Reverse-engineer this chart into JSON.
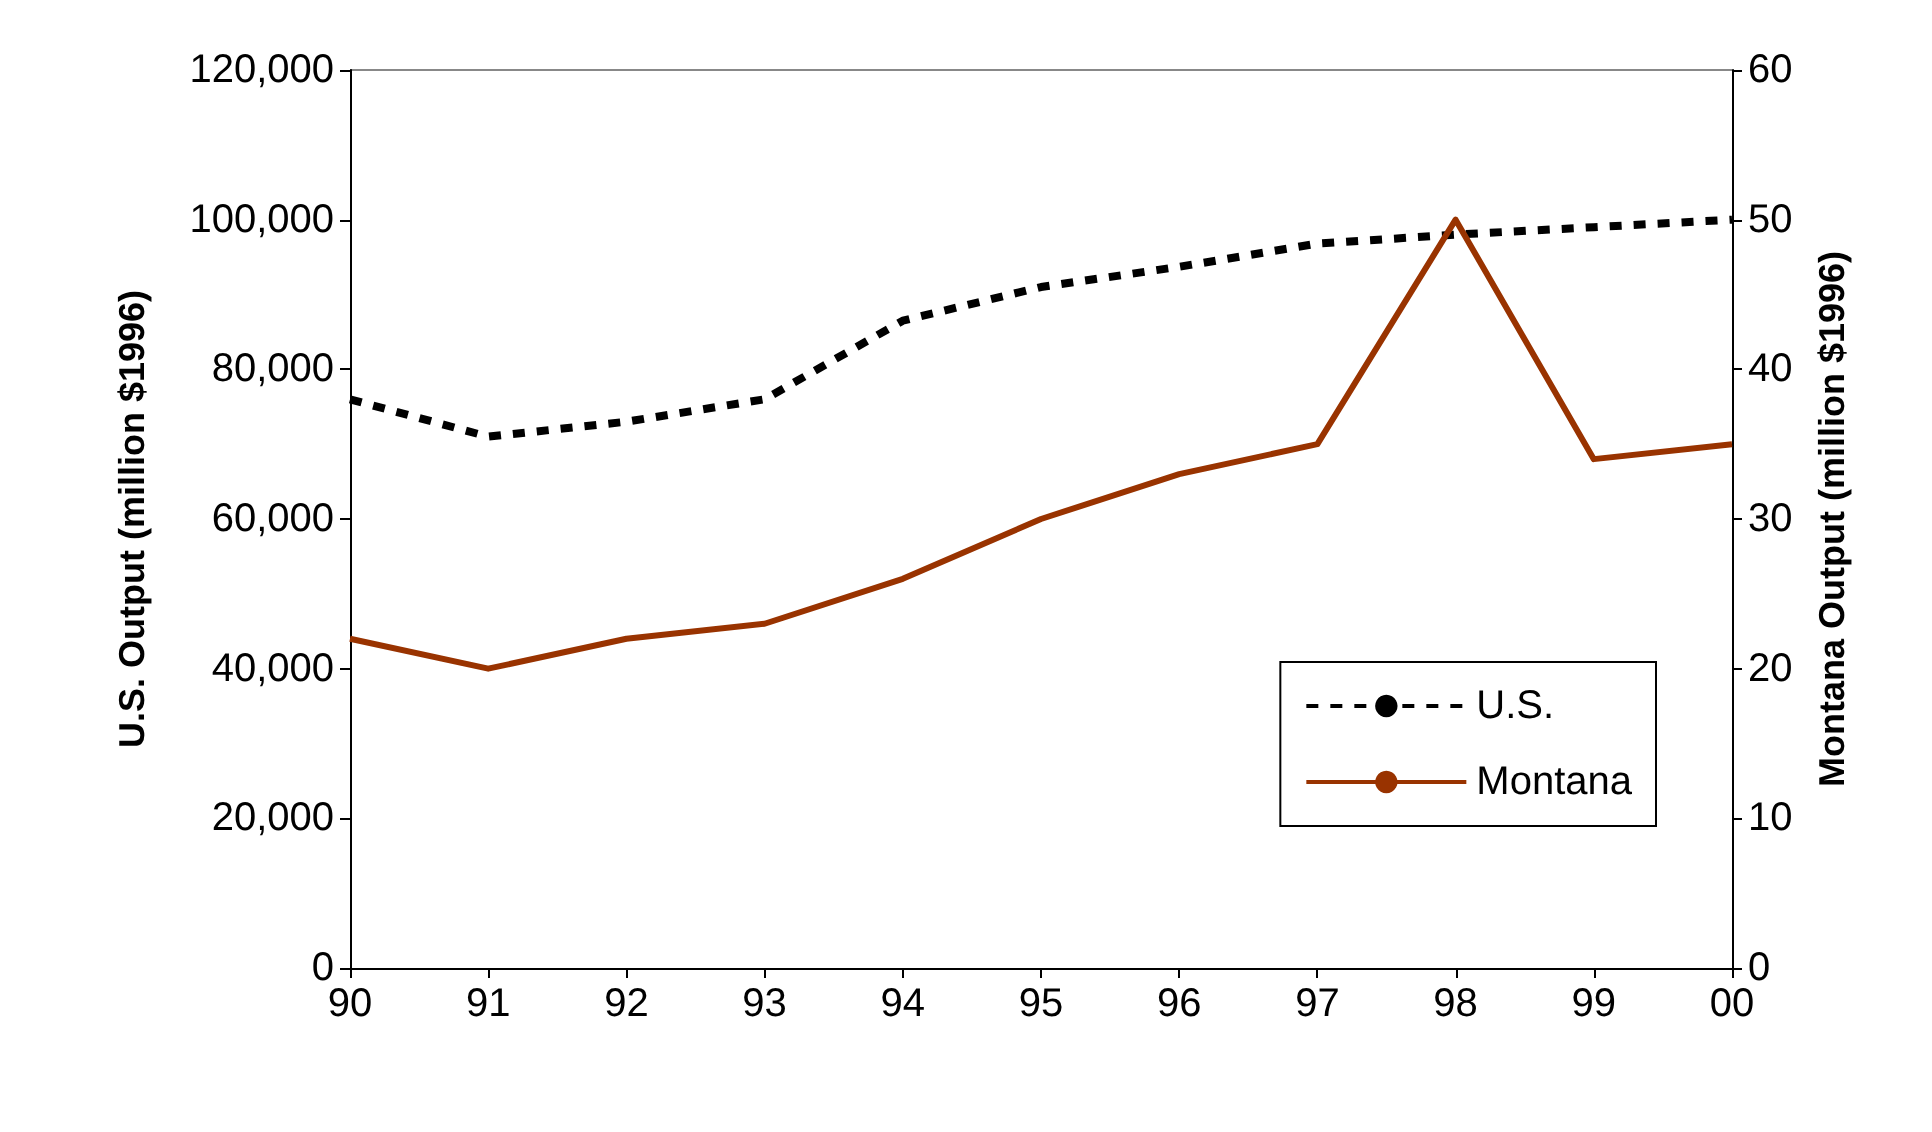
{
  "chart_data": {
    "type": "line",
    "categories": [
      "90",
      "91",
      "92",
      "93",
      "94",
      "95",
      "96",
      "97",
      "98",
      "99",
      "00"
    ],
    "ylabel": "U.S. Output (million $1996)",
    "y2label": "Montana Output (million $1996)",
    "ylim": [
      0,
      120000
    ],
    "yticks": [
      0,
      {
        "value": 20000,
        "label": "20,000"
      },
      {
        "value": 40000,
        "label": "40,000"
      },
      {
        "value": 60000,
        "label": "60,000"
      },
      {
        "value": 80000,
        "label": "80,000"
      },
      {
        "value": 100000,
        "label": "100,000"
      },
      {
        "value": 120000,
        "label": "120,000"
      }
    ],
    "y2lim": [
      0,
      60
    ],
    "y2ticks": [
      0,
      10,
      20,
      30,
      40,
      50,
      60
    ],
    "series": [
      {
        "name": "U.S.",
        "color": "#000000",
        "line_style": "dashed",
        "values": [
          76000,
          71000,
          73000,
          76000,
          86500,
          91000,
          93700,
          96800,
          98000,
          99000,
          100000
        ]
      },
      {
        "name": "Montana",
        "color": "#993300",
        "line_style": "solid",
        "axis": "y2",
        "values": [
          22,
          20,
          22,
          23,
          26,
          30,
          33,
          35,
          50,
          34,
          35
        ]
      }
    ],
    "grid": false,
    "legend": "bottom right",
    "marker": "none"
  }
}
